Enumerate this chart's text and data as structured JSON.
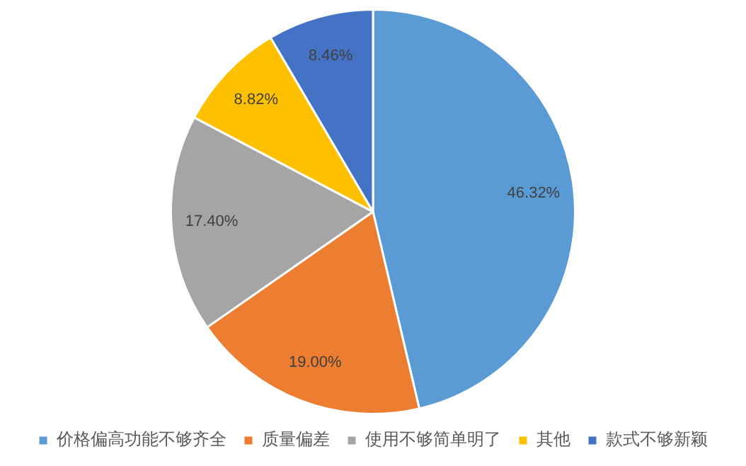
{
  "chart_data": {
    "type": "pie",
    "categories": [
      "价格偏高功能不够齐全",
      "质量偏差",
      "使用不够简单明了",
      "其他",
      "款式不够新颖"
    ],
    "values": [
      46.32,
      19.0,
      17.4,
      8.82,
      8.46
    ],
    "value_labels": [
      "46.32%",
      "19.00%",
      "17.40%",
      "8.82%",
      "8.46%"
    ],
    "colors": [
      "#5b9bd5",
      "#ed7d31",
      "#a5a5a5",
      "#ffc000",
      "#4472c4"
    ],
    "legend": "bottom"
  }
}
